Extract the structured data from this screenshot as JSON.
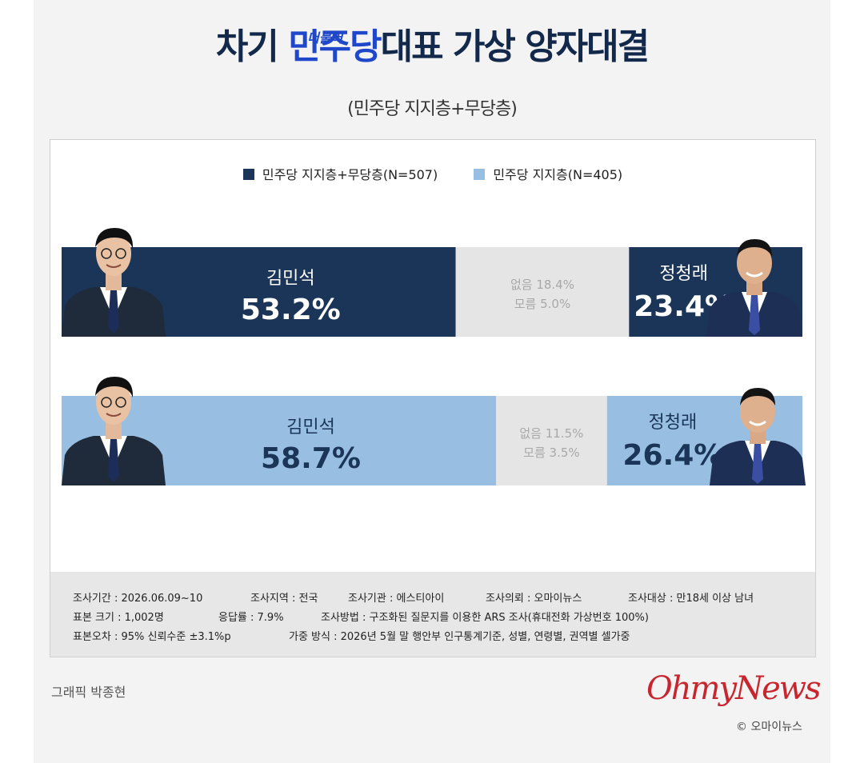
{
  "title": {
    "prefix": "차기 ",
    "brand": "민주당",
    "brand_tag": "더불어",
    "suffix": "대표 가상 양자대결"
  },
  "subtitle": "(민주당 지지층+무당층)",
  "colors": {
    "dark": "#1a3557",
    "light": "#98bfe2",
    "neutral": "#e5e5e5"
  },
  "legend": [
    {
      "label": "민주당 지지층+무당층(N=507)",
      "color": "#1a3557"
    },
    {
      "label": "민주당 지지층(N=405)",
      "color": "#98bfe2"
    }
  ],
  "chart_data": {
    "type": "bar",
    "orientation": "horizontal-stacked",
    "categories": [
      "민주당 지지층+무당층(N=507)",
      "민주당 지지층(N=405)"
    ],
    "series": [
      {
        "name": "김민석",
        "values": [
          53.2,
          58.7
        ]
      },
      {
        "name": "없음",
        "values": [
          18.4,
          11.5
        ]
      },
      {
        "name": "모름",
        "values": [
          5.0,
          3.5
        ]
      },
      {
        "name": "정청래",
        "values": [
          23.4,
          26.4
        ]
      }
    ],
    "rows": [
      {
        "left_name": "김민석",
        "left_value": "53.2%",
        "right_name": "정청래",
        "right_value": "23.4%",
        "none_label": "없음 18.4%",
        "unknown_label": "모름 5.0%"
      },
      {
        "left_name": "김민석",
        "left_value": "58.7%",
        "right_name": "정청래",
        "right_value": "26.4%",
        "none_label": "없음 11.5%",
        "unknown_label": "모름 3.5%"
      }
    ]
  },
  "meta": {
    "row1": [
      "조사기간 : 2026.06.09~10",
      "조사지역 : 전국",
      "조사기관 : 에스티아이",
      "조사의뢰 : 오마이뉴스",
      "조사대상 : 만18세 이상 남녀"
    ],
    "row2": [
      "표본 크기 : 1,002명",
      "응답률 : 7.9%",
      "조사방법 : 구조화된 질문지를 이용한 ARS 조사(휴대전화 가상번호 100%)"
    ],
    "row3": [
      "표본오차 : 95% 신뢰수준 ±3.1%p",
      "가중 방식 : 2026년 5월 말 행안부 인구통계기준, 성별, 연령별, 권역별 셀가중"
    ]
  },
  "credit": "그래픽 박종현",
  "logo": "OhmyNews",
  "copyright": "© 오마이뉴스"
}
